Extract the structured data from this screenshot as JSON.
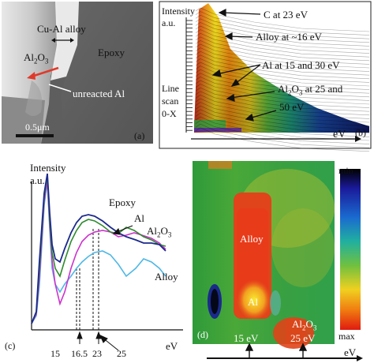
{
  "panel_a": {
    "label": "(a)",
    "labels": {
      "cual": "Cu-Al alloy",
      "al2o3": "Al2O3",
      "epoxy": "Epoxy",
      "unreacted": "unreacted Al"
    },
    "scale_bar": "0.5μm"
  },
  "panel_b": {
    "label": "(b)",
    "yaxis_lines": [
      "Intensity",
      "a.u."
    ],
    "line_scan": [
      "Line",
      "scan",
      "0-X"
    ],
    "xlabel": "eV",
    "annotations": [
      "C at 23 eV",
      "Alloy at ~16 eV",
      "Al at 15 and 30 eV",
      "Al2O3 at 25 and",
      "50 eV"
    ]
  },
  "panel_c": {
    "label": "(c)",
    "ylabel_lines": [
      "Intensity",
      "a.u."
    ],
    "xlabel": "eV",
    "tick_labels": [
      "15",
      "16.5",
      "23",
      "25"
    ],
    "legend": [
      "Epoxy",
      "Al",
      "Al2O3",
      "Alloy"
    ],
    "chart_data": {
      "type": "line",
      "xlabel": "eV",
      "ylabel": "Intensity a.u.",
      "marked_energies_eV": [
        15,
        16.5,
        23,
        25
      ],
      "series": [
        {
          "name": "Epoxy",
          "color": "#1c2a8c"
        },
        {
          "name": "Al",
          "color": "#2e8b2e"
        },
        {
          "name": "Al2O3",
          "color": "#cc33cc"
        },
        {
          "name": "Alloy",
          "color": "#4fb8e6"
        }
      ]
    }
  },
  "panel_d": {
    "label": "(d)",
    "scale_min": "min",
    "scale_max": "max",
    "labels": {
      "alloy": "Alloy",
      "al": "Al",
      "al2o3": "Al2O3",
      "energy_a": "25 eV"
    },
    "axis_ticks": [
      "15 eV"
    ],
    "xlabel": "eV"
  }
}
